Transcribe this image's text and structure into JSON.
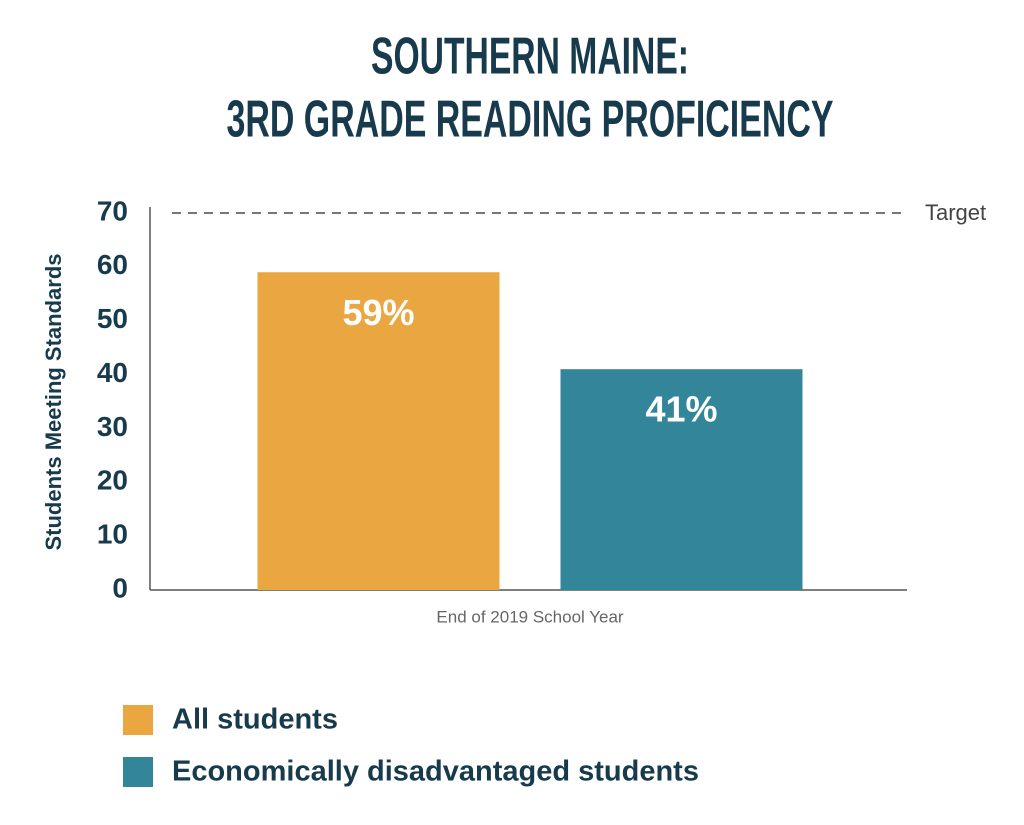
{
  "chart_data": {
    "type": "bar",
    "title": [
      "SOUTHERN MAINE:",
      "3RD GRADE READING PROFICIENCY"
    ],
    "y_label": "Students Meeting Standards",
    "categories": [
      "End of 2019 School Year"
    ],
    "series": [
      {
        "name": "All students",
        "color": "#e9a641",
        "values": [
          59
        ],
        "value_labels": [
          "59%"
        ]
      },
      {
        "name": "Economically disadvantaged students",
        "color": "#33869a",
        "values": [
          41
        ],
        "value_labels": [
          "41%"
        ]
      }
    ],
    "ylim": [
      0,
      70
    ],
    "yticks": [
      0,
      10,
      20,
      30,
      40,
      50,
      60,
      70
    ],
    "grid": false,
    "annotations": [
      {
        "y": 70,
        "text": "Target"
      }
    ],
    "legend": "bottom-left"
  }
}
